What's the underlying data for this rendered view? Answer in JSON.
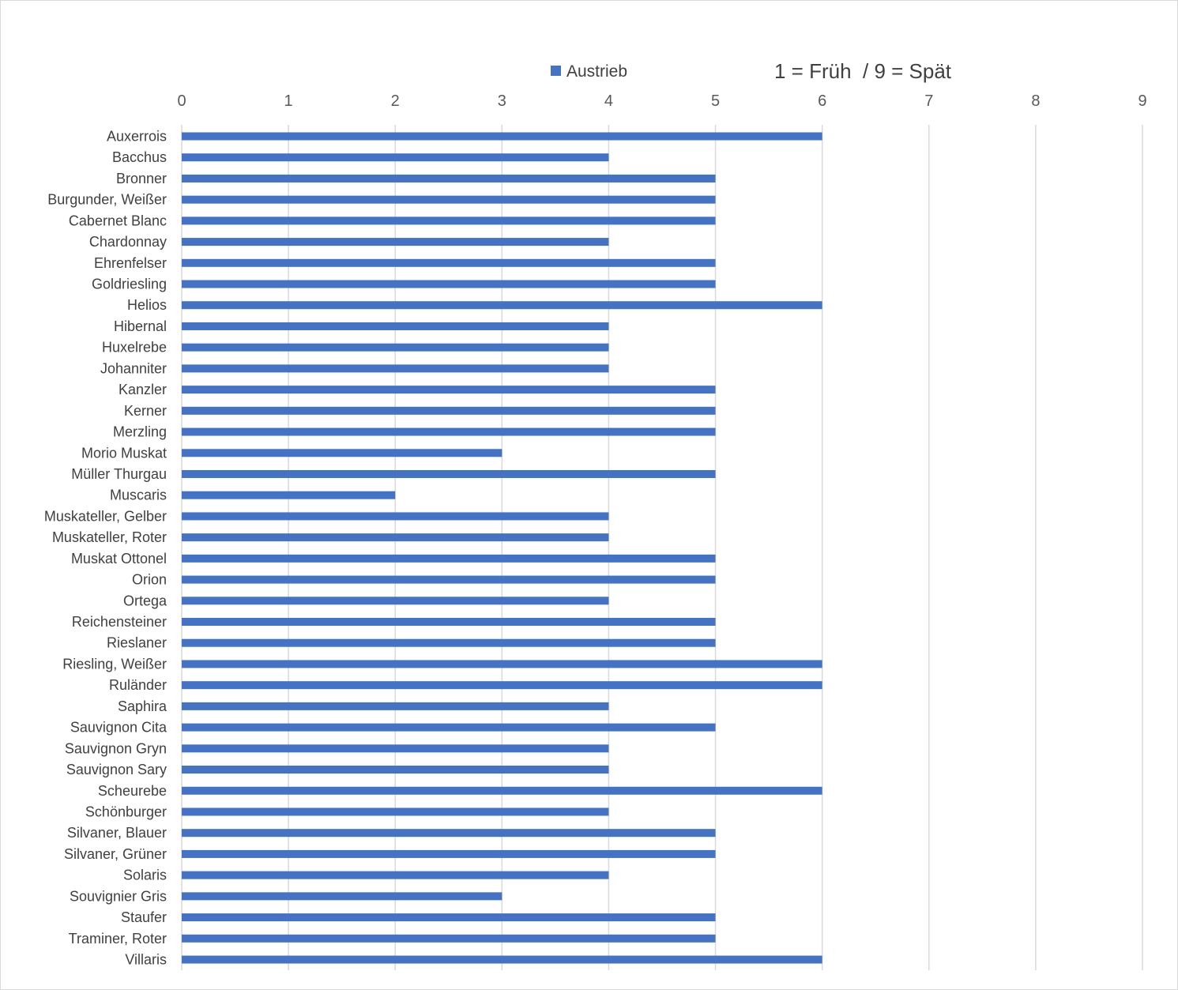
{
  "chart_data": {
    "type": "bar",
    "orientation": "horizontal",
    "title": "",
    "note": "1 = Früh  / 9 = Spät",
    "xlim": [
      0,
      9
    ],
    "x_ticks": [
      "0",
      "1",
      "2",
      "3",
      "4",
      "5",
      "6",
      "7",
      "8",
      "9"
    ],
    "x_axis_position": "top",
    "grid": true,
    "legend": {
      "placement": "top",
      "entries": [
        "Austrieb"
      ]
    },
    "colors": {
      "bar": "#4472c4",
      "grid": "#d9d9d9"
    },
    "categories": [
      "Auxerrois",
      "Bacchus",
      "Bronner",
      "Burgunder, Weißer",
      "Cabernet Blanc",
      "Chardonnay",
      "Ehrenfelser",
      "Goldriesling",
      "Helios",
      "Hibernal",
      "Huxelrebe",
      "Johanniter",
      "Kanzler",
      "Kerner",
      "Merzling",
      "Morio Muskat",
      "Müller Thurgau",
      "Muscaris",
      "Muskateller, Gelber",
      "Muskateller, Roter",
      "Muskat Ottonel",
      "Orion",
      "Ortega",
      "Reichensteiner",
      "Rieslaner",
      "Riesling, Weißer",
      "Ruländer",
      "Saphira",
      "Sauvignon Cita",
      "Sauvignon Gryn",
      "Sauvignon Sary",
      "Scheurebe",
      "Schönburger",
      "Silvaner, Blauer",
      "Silvaner, Grüner",
      "Solaris",
      "Souvignier Gris",
      "Staufer",
      "Traminer, Roter",
      "Villaris"
    ],
    "series": [
      {
        "name": "Austrieb",
        "values": [
          6,
          4,
          5,
          5,
          5,
          4,
          5,
          5,
          6,
          4,
          4,
          4,
          5,
          5,
          5,
          3,
          5,
          2,
          4,
          4,
          5,
          5,
          4,
          5,
          5,
          6,
          6,
          4,
          5,
          4,
          4,
          6,
          4,
          5,
          5,
          4,
          3,
          5,
          5,
          6
        ]
      }
    ]
  }
}
